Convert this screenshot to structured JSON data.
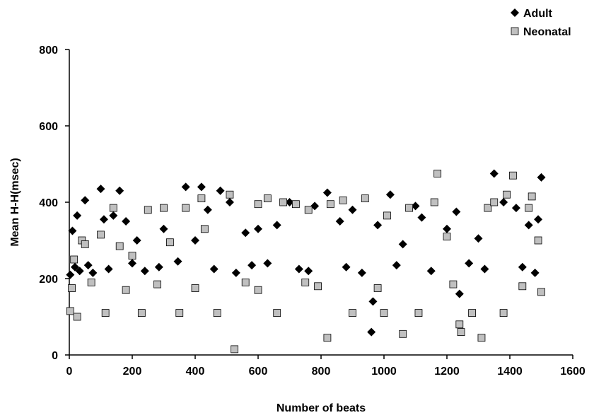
{
  "chart_data": {
    "type": "scatter",
    "xlabel": "Number of beats",
    "ylabel": "Mean H-H(msec)",
    "xlim": [
      0,
      1600
    ],
    "xticks": [
      0,
      200,
      400,
      600,
      800,
      1000,
      1200,
      1400,
      1600
    ],
    "ylim": [
      0,
      800
    ],
    "yticks": [
      0,
      200,
      400,
      600,
      800
    ],
    "legend": "top-right",
    "series": [
      {
        "name": "Adult",
        "color": "#000000",
        "marker": "diamond",
        "x": [
          3,
          10,
          18,
          25,
          33,
          50,
          60,
          75,
          100,
          110,
          125,
          140,
          160,
          180,
          200,
          215,
          240,
          285,
          300,
          345,
          370,
          400,
          420,
          440,
          460,
          480,
          510,
          530,
          560,
          600,
          630,
          660,
          700,
          730,
          780,
          820,
          860,
          880,
          900,
          930,
          960,
          965,
          980,
          1020,
          1040,
          1060,
          1100,
          1120,
          1150,
          1200,
          1230,
          1240,
          1270,
          1300,
          1350,
          1380,
          1420,
          1460,
          1490,
          1500,
          1320,
          1440,
          1480,
          760,
          580
        ],
        "values": [
          210,
          325,
          230,
          365,
          220,
          405,
          235,
          215,
          435,
          355,
          225,
          365,
          430,
          350,
          240,
          300,
          220,
          230,
          330,
          245,
          440,
          300,
          440,
          380,
          225,
          430,
          400,
          215,
          320,
          330,
          240,
          340,
          400,
          225,
          390,
          425,
          350,
          230,
          380,
          215,
          60,
          140,
          340,
          420,
          235,
          290,
          390,
          360,
          220,
          330,
          375,
          160,
          240,
          305,
          475,
          400,
          385,
          340,
          355,
          465,
          225,
          230,
          215,
          220,
          235
        ]
      },
      {
        "name": "Neonatal",
        "color": "#c0c0c0",
        "marker": "square",
        "x": [
          3,
          8,
          15,
          25,
          40,
          50,
          70,
          100,
          115,
          140,
          160,
          180,
          200,
          230,
          250,
          280,
          300,
          320,
          350,
          370,
          400,
          420,
          430,
          470,
          510,
          525,
          560,
          600,
          630,
          660,
          680,
          720,
          760,
          790,
          820,
          830,
          870,
          900,
          940,
          980,
          1010,
          1060,
          1080,
          1110,
          1160,
          1170,
          1200,
          1220,
          1240,
          1245,
          1280,
          1310,
          1330,
          1350,
          1390,
          1410,
          1440,
          1460,
          1470,
          1490,
          1500,
          1380,
          1000,
          750,
          600
        ],
        "values": [
          115,
          175,
          250,
          100,
          300,
          290,
          190,
          315,
          110,
          385,
          285,
          170,
          260,
          110,
          380,
          185,
          385,
          295,
          110,
          385,
          175,
          410,
          330,
          110,
          420,
          15,
          190,
          395,
          410,
          110,
          400,
          395,
          380,
          180,
          45,
          395,
          405,
          110,
          410,
          175,
          365,
          55,
          385,
          110,
          400,
          475,
          310,
          185,
          80,
          60,
          110,
          45,
          385,
          400,
          420,
          470,
          180,
          385,
          415,
          300,
          165,
          110,
          110,
          190,
          170
        ]
      }
    ]
  }
}
